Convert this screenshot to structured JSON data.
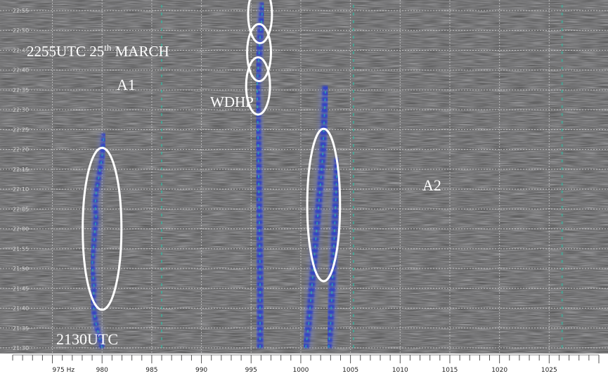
{
  "chart_data": {
    "type": "heatmap",
    "title": "",
    "xlabel": "",
    "ylabel": "",
    "x_unit": "Hz",
    "xlim": [
      971,
      1030
    ],
    "x_ticks": [
      {
        "v": 975,
        "label": "975 Hz"
      },
      {
        "v": 980,
        "label": "980"
      },
      {
        "v": 985,
        "label": "985"
      },
      {
        "v": 990,
        "label": "990"
      },
      {
        "v": 995,
        "label": "995"
      },
      {
        "v": 1000,
        "label": "1000"
      },
      {
        "v": 1005,
        "label": "1005"
      },
      {
        "v": 1010,
        "label": "1010"
      },
      {
        "v": 1015,
        "label": "1015"
      },
      {
        "v": 1020,
        "label": "1020"
      },
      {
        "v": 1025,
        "label": "1025"
      }
    ],
    "y_ticks": [
      "22:55",
      "22:50",
      "22:45",
      "22:40",
      "22:35",
      "22:30",
      "22:25",
      "22:20",
      "22:15",
      "22:10",
      "22:05",
      "22:00",
      "21:55",
      "21:50",
      "21:45",
      "21:40",
      "21:35",
      "21:30"
    ],
    "annotations": [
      {
        "text": "2255UTC 25",
        "sup": "th",
        "tail": " MARCH"
      },
      {
        "text": "A1"
      },
      {
        "text": "WDHP"
      },
      {
        "text": "A2"
      },
      {
        "text": "2130UTC"
      }
    ],
    "traces": [
      {
        "name": "A1",
        "points": [
          [
            980.0,
            21.5
          ],
          [
            979.7,
            21.55
          ],
          [
            979.4,
            21.6
          ],
          [
            979.2,
            21.65
          ],
          [
            979.1,
            21.7
          ],
          [
            979.2,
            21.75
          ],
          [
            979.1,
            21.8
          ],
          [
            979.0,
            21.85
          ],
          [
            979.1,
            21.9
          ],
          [
            979.2,
            21.95
          ],
          [
            979.3,
            22.0
          ],
          [
            979.4,
            22.05
          ],
          [
            979.3,
            22.1
          ],
          [
            979.4,
            22.15
          ],
          [
            979.6,
            22.2
          ],
          [
            979.8,
            22.25
          ],
          [
            980.0,
            22.3
          ],
          [
            980.1,
            22.35
          ],
          [
            980.2,
            22.4
          ]
        ]
      },
      {
        "name": "A2a",
        "points": [
          [
            1000.5,
            21.5
          ],
          [
            1000.8,
            21.6
          ],
          [
            1001.0,
            21.7
          ],
          [
            1001.2,
            21.8
          ],
          [
            1001.4,
            21.9
          ],
          [
            1001.6,
            22.0
          ],
          [
            1001.8,
            22.1
          ],
          [
            1002.0,
            22.2
          ],
          [
            1002.2,
            22.3
          ],
          [
            1002.3,
            22.4
          ],
          [
            1002.4,
            22.5
          ],
          [
            1002.5,
            22.6
          ]
        ]
      },
      {
        "name": "A2b",
        "points": [
          [
            1002.8,
            21.5
          ],
          [
            1003.0,
            21.6
          ],
          [
            1003.1,
            21.7
          ],
          [
            1003.2,
            21.8
          ],
          [
            1003.3,
            21.9
          ],
          [
            1003.4,
            22.0
          ],
          [
            1003.5,
            22.1
          ],
          [
            1003.6,
            22.2
          ],
          [
            1003.7,
            22.3
          ]
        ]
      },
      {
        "name": "WDHP",
        "points": [
          [
            995.9,
            21.5
          ],
          [
            995.9,
            21.8
          ],
          [
            995.8,
            22.1
          ],
          [
            995.7,
            22.4
          ],
          [
            995.6,
            22.6
          ],
          [
            995.9,
            22.8
          ],
          [
            996.2,
            22.95
          ]
        ]
      },
      {
        "name": "line-986",
        "points": [
          [
            986.0,
            21.5
          ],
          [
            986.0,
            22.95
          ]
        ]
      },
      {
        "name": "line-1005",
        "points": [
          [
            1005.3,
            21.5
          ],
          [
            1005.3,
            22.95
          ]
        ]
      },
      {
        "name": "line-1026",
        "points": [
          [
            1026.3,
            21.5
          ],
          [
            1026.3,
            22.95
          ]
        ]
      }
    ]
  }
}
